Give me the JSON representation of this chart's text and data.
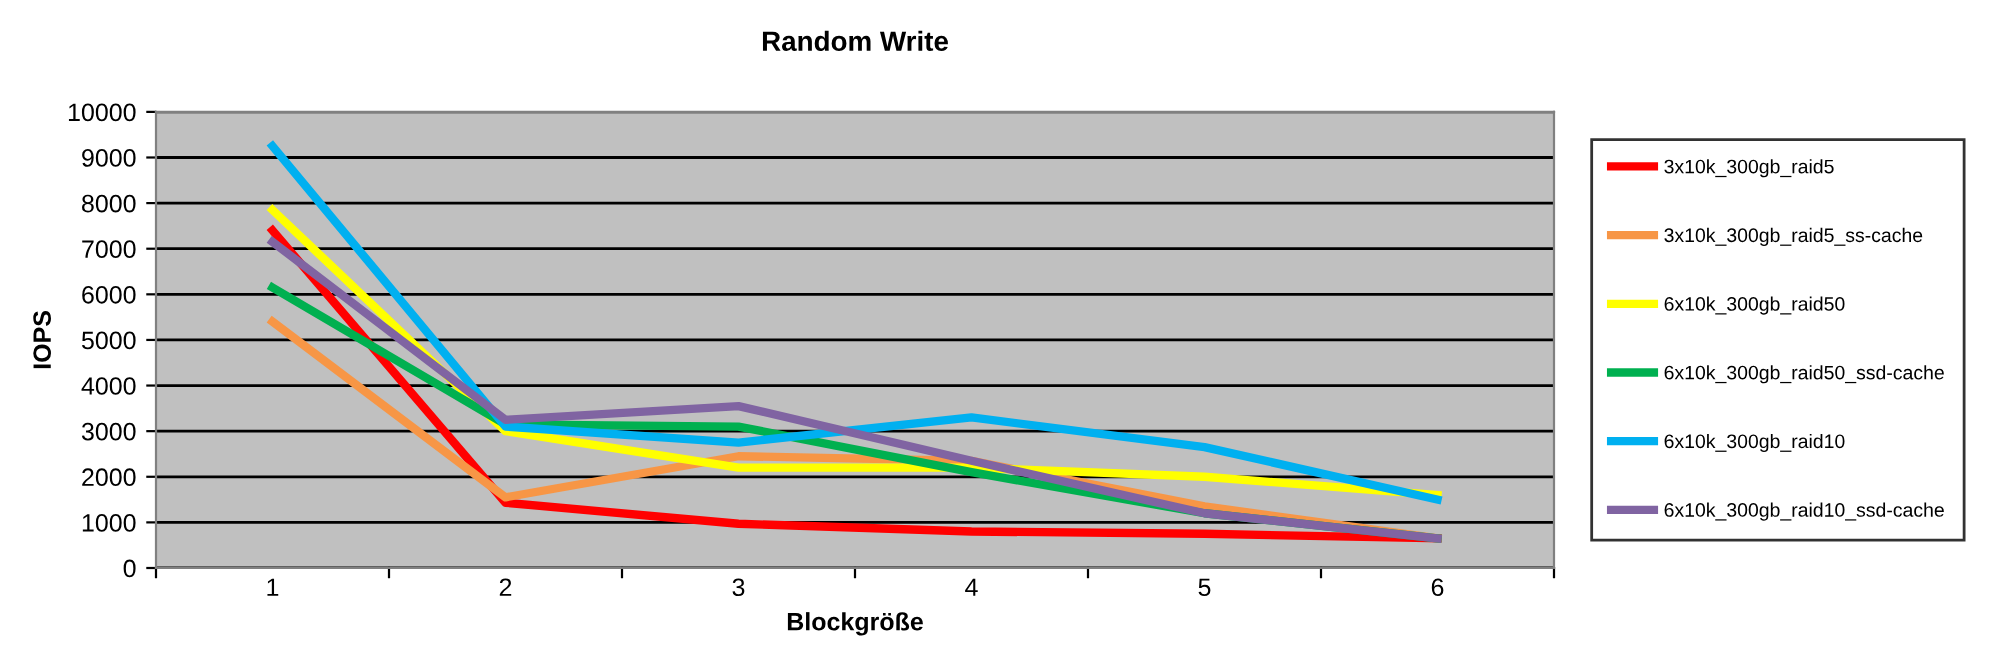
{
  "chart_data": {
    "type": "line",
    "title": "Random Write",
    "xlabel": "Blockgröße",
    "ylabel": "IOPS",
    "categories": [
      "1",
      "2",
      "3",
      "4",
      "5",
      "6"
    ],
    "series": [
      {
        "name": "3x10k_300gb_raid5",
        "color": "#ff0000",
        "values": [
          7400,
          1430,
          970,
          800,
          750,
          650
        ]
      },
      {
        "name": "3x10k_300gb_raid5_ss-cache",
        "color": "#f79646",
        "values": [
          5400,
          1550,
          2450,
          2350,
          1350,
          650
        ]
      },
      {
        "name": "6x10k_300gb_raid50",
        "color": "#ffff00",
        "values": [
          7850,
          3000,
          2200,
          2200,
          2000,
          1600
        ]
      },
      {
        "name": "6x10k_300gb_raid50_ssd-cache",
        "color": "#00b050",
        "values": [
          6150,
          3150,
          3100,
          2100,
          1200,
          650
        ]
      },
      {
        "name": "6x10k_300gb_raid10",
        "color": "#00b0f0",
        "values": [
          9250,
          3100,
          2750,
          3300,
          2650,
          1500
        ]
      },
      {
        "name": "6x10k_300gb_raid10_ssd-cache",
        "color": "#8064a2",
        "values": [
          7150,
          3250,
          3550,
          2350,
          1200,
          650
        ]
      }
    ],
    "ylim": [
      0,
      10000
    ],
    "yticks": [
      0,
      1000,
      2000,
      3000,
      4000,
      5000,
      6000,
      7000,
      8000,
      9000,
      10000
    ],
    "grid": "y",
    "legend": "right",
    "line_style": "solid",
    "marker": "none"
  }
}
